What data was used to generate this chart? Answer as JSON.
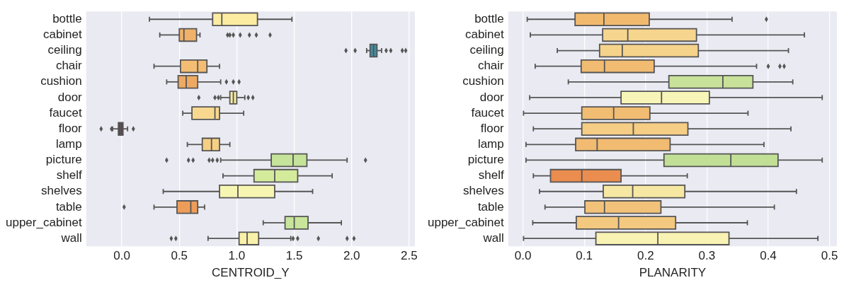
{
  "chart_data": [
    {
      "type": "box",
      "orientation": "horizontal",
      "xlabel": "CENTROID_Y",
      "grid": "x",
      "categories": [
        "bottle",
        "cabinet",
        "ceiling",
        "chair",
        "cushion",
        "door",
        "faucet",
        "floor",
        "lamp",
        "picture",
        "shelf",
        "shelves",
        "table",
        "upper_cabinet",
        "wall"
      ],
      "xlim": [
        -0.31,
        2.55
      ],
      "xticks": [
        {
          "value": 0,
          "label": "0.0"
        },
        0.5,
        {
          "value": 1,
          "label": "1.0"
        },
        1.5,
        {
          "value": 2,
          "label": "2.0"
        },
        2.5
      ],
      "colors": [
        "#fbeca2",
        "#f0b26b",
        "#3f8fa0",
        "#f3bd74",
        "#eeaa62",
        "#f7eba0",
        "#f8d88e",
        "#5e4349",
        "#f6cf85",
        "#c6e39a",
        "#d4eb9c",
        "#f7f5b2",
        "#ee9d58",
        "#c8e59b",
        "#f9f1a9"
      ],
      "boxes": [
        {
          "low": 0.24,
          "q1": 0.79,
          "median": 0.87,
          "q3": 1.18,
          "high": 1.48
        },
        {
          "low": 0.33,
          "q1": 0.5,
          "median": 0.54,
          "q3": 0.65,
          "high": 0.68,
          "outliers": [
            0.92,
            0.94,
            0.97,
            1.03,
            1.11,
            1.17,
            1.29
          ]
        },
        {
          "low": 2.13,
          "q1": 2.16,
          "median": 2.19,
          "q3": 2.22,
          "high": 2.26,
          "outliers": [
            1.95,
            2.03,
            2.3,
            2.34,
            2.44,
            2.47
          ]
        },
        {
          "low": 0.28,
          "q1": 0.51,
          "median": 0.66,
          "q3": 0.74,
          "high": 0.85
        },
        {
          "low": 0.39,
          "q1": 0.49,
          "median": 0.56,
          "q3": 0.66,
          "high": 0.86,
          "outliers": [
            0.91,
            0.97,
            1.02
          ]
        },
        {
          "low": 0.86,
          "q1": 0.94,
          "median": 0.97,
          "q3": 1.0,
          "high": 1.07,
          "outliers": [
            0.67,
            0.81,
            0.84,
            1.1,
            1.14
          ]
        },
        {
          "low": 0.53,
          "q1": 0.61,
          "median": 0.81,
          "q3": 0.85,
          "high": 1.06
        },
        {
          "low": -0.08,
          "q1": -0.03,
          "median": -0.01,
          "q3": 0.01,
          "high": 0.05,
          "outliers": [
            -0.18,
            -0.09,
            0.1
          ]
        },
        {
          "low": 0.57,
          "q1": 0.7,
          "median": 0.78,
          "q3": 0.85,
          "high": 0.94
        },
        {
          "low": 0.86,
          "q1": 1.3,
          "median": 1.49,
          "q3": 1.61,
          "high": 1.96,
          "outliers": [
            0.39,
            0.58,
            0.62,
            0.76,
            0.79,
            0.83,
            2.12
          ]
        },
        {
          "low": 0.88,
          "q1": 1.15,
          "median": 1.33,
          "q3": 1.53,
          "high": 1.83
        },
        {
          "low": 0.36,
          "q1": 0.85,
          "median": 1.01,
          "q3": 1.33,
          "high": 1.66
        },
        {
          "low": 0.28,
          "q1": 0.48,
          "median": 0.6,
          "q3": 0.66,
          "high": 0.72,
          "outliers": [
            0.02
          ]
        },
        {
          "low": 1.23,
          "q1": 1.42,
          "median": 1.5,
          "q3": 1.62,
          "high": 1.91
        },
        {
          "low": 0.75,
          "q1": 1.02,
          "median": 1.09,
          "q3": 1.19,
          "high": 1.47,
          "outliers": [
            0.43,
            0.47,
            1.49,
            1.53,
            1.71,
            1.96,
            2.02
          ]
        }
      ]
    },
    {
      "type": "box",
      "orientation": "horizontal",
      "xlabel": "PLANARITY",
      "grid": "x",
      "categories": [
        "bottle",
        "cabinet",
        "ceiling",
        "chair",
        "cushion",
        "door",
        "faucet",
        "floor",
        "lamp",
        "picture",
        "shelf",
        "shelves",
        "table",
        "upper_cabinet",
        "wall"
      ],
      "xlim": [
        -0.024,
        0.512
      ],
      "xticks": [
        {
          "value": 0,
          "label": "0.0"
        },
        0.1,
        0.2,
        0.3,
        0.4,
        0.5
      ],
      "colors": [
        "#f1b96e",
        "#f6d58e",
        "#f5d38b",
        "#f1bb71",
        "#c8e29a",
        "#f8f5b8",
        "#f1bd73",
        "#f5cd85",
        "#f1bb72",
        "#c2df96",
        "#ea8d4f",
        "#f6e7a3",
        "#f2c27a",
        "#f3c87f",
        "#f8f2b3"
      ],
      "boxes": [
        {
          "low": 0.007,
          "q1": 0.085,
          "median": 0.132,
          "q3": 0.206,
          "high": 0.341,
          "outliers": [
            0.397
          ]
        },
        {
          "low": 0.012,
          "q1": 0.13,
          "median": 0.171,
          "q3": 0.283,
          "high": 0.459
        },
        {
          "low": 0.056,
          "q1": 0.125,
          "median": 0.162,
          "q3": 0.286,
          "high": 0.433
        },
        {
          "low": 0.02,
          "q1": 0.095,
          "median": 0.133,
          "q3": 0.214,
          "high": 0.381,
          "outliers": [
            0.4,
            0.419,
            0.426
          ]
        },
        {
          "low": 0.074,
          "q1": 0.238,
          "median": 0.326,
          "q3": 0.375,
          "high": 0.44
        },
        {
          "low": 0.011,
          "q1": 0.16,
          "median": 0.226,
          "q3": 0.304,
          "high": 0.488
        },
        {
          "low": 0.001,
          "q1": 0.096,
          "median": 0.148,
          "q3": 0.207,
          "high": 0.367
        },
        {
          "low": 0.017,
          "q1": 0.096,
          "median": 0.18,
          "q3": 0.269,
          "high": 0.437
        },
        {
          "low": 0.005,
          "q1": 0.086,
          "median": 0.121,
          "q3": 0.24,
          "high": 0.393
        },
        {
          "low": 0.005,
          "q1": 0.23,
          "median": 0.339,
          "q3": 0.416,
          "high": 0.488
        },
        {
          "low": 0.017,
          "q1": 0.045,
          "median": 0.096,
          "q3": 0.16,
          "high": 0.268
        },
        {
          "low": 0.027,
          "q1": 0.131,
          "median": 0.179,
          "q3": 0.264,
          "high": 0.446
        },
        {
          "low": 0.036,
          "q1": 0.101,
          "median": 0.133,
          "q3": 0.225,
          "high": 0.41
        },
        {
          "low": 0.016,
          "q1": 0.087,
          "median": 0.156,
          "q3": 0.249,
          "high": 0.366
        },
        {
          "low": 0.001,
          "q1": 0.119,
          "median": 0.22,
          "q3": 0.336,
          "high": 0.481
        }
      ]
    }
  ]
}
